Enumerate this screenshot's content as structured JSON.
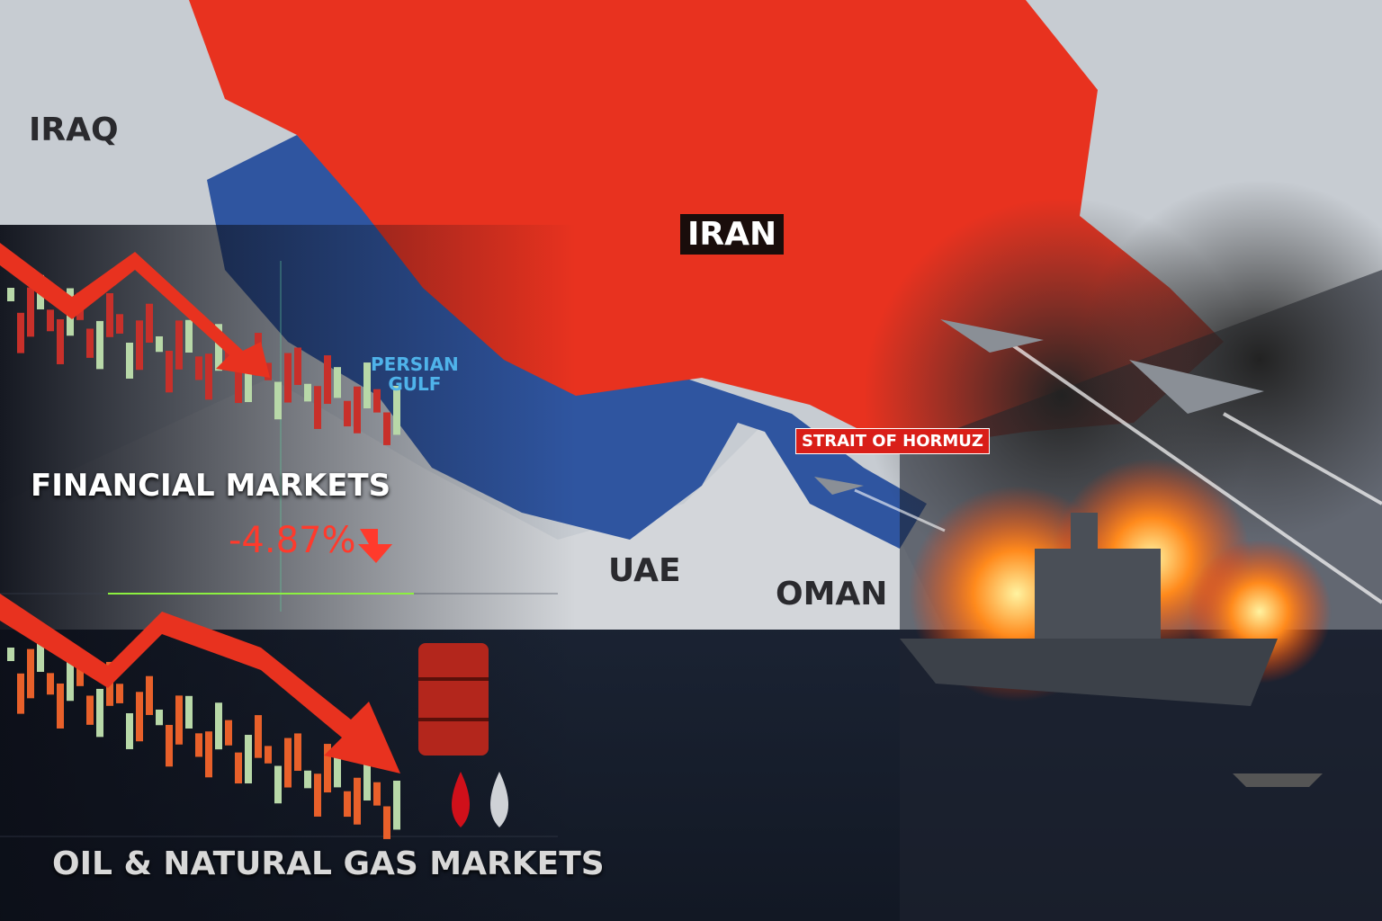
{
  "map": {
    "countries": {
      "iraq": "IRAQ",
      "iran": "IRAN",
      "uae": "UAE",
      "oman": "OMAN"
    },
    "water": {
      "gulf_line1": "PERSIAN",
      "gulf_line2": "GULF",
      "strait": "STRAIT OF HORMUZ"
    }
  },
  "markets": {
    "financial_title": "FINANCIAL MARKETS",
    "financial_change": "-4.87%",
    "financial_trend": "down",
    "oil_title": "OIL & NATURAL GAS MARKETS",
    "oil_trend": "down"
  },
  "icons": [
    "arrow-down-icon",
    "oil-barrel-icon",
    "oil-drop-icon",
    "gas-drop-icon",
    "fighter-jet-icon",
    "warship-icon"
  ],
  "colors": {
    "iran": "#e8321f",
    "gulf": "#2f55a0",
    "land": "#c9ccd0",
    "sea": "#1b2433",
    "alert": "#ff3a2c"
  }
}
